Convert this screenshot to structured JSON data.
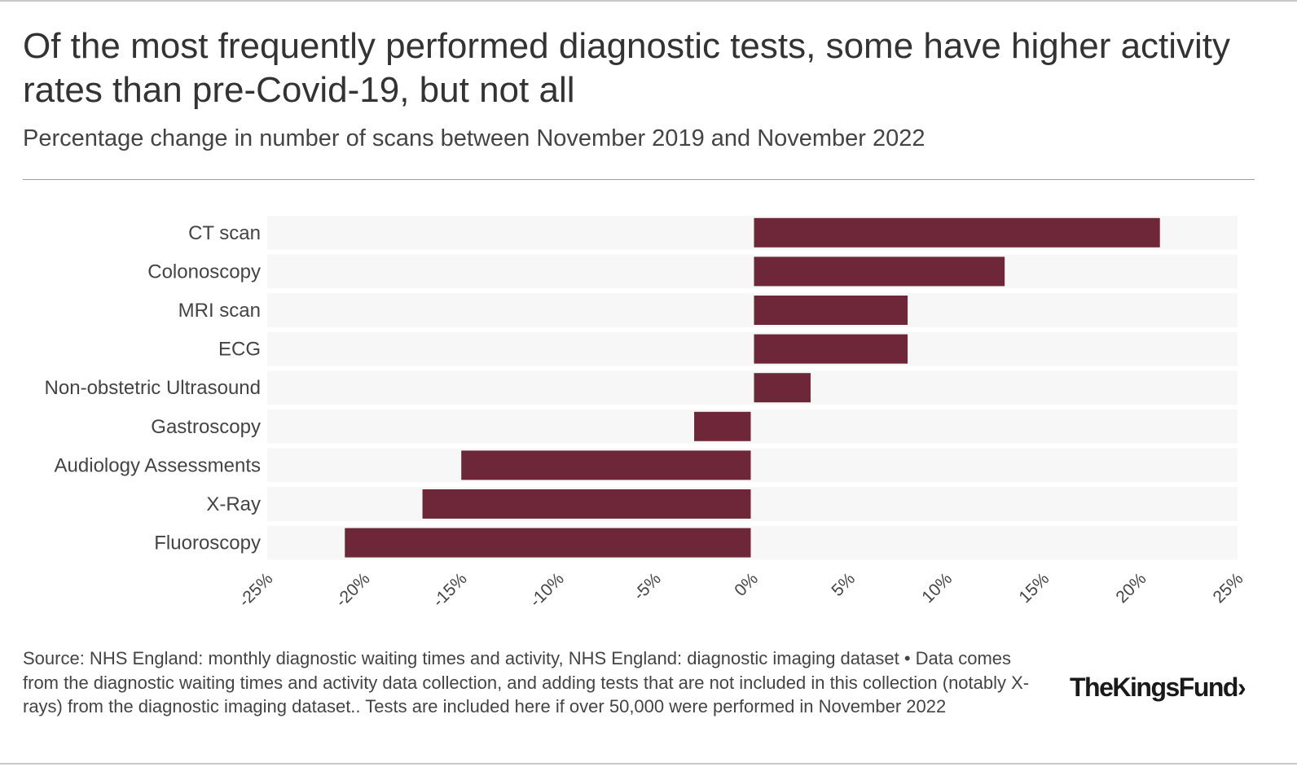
{
  "header": {
    "title": "Of the most frequently performed diagnostic tests, some have higher activity rates than pre-Covid-19, but not all",
    "subtitle": "Percentage change in number of scans between November 2019 and November 2022"
  },
  "chart_data": {
    "type": "bar",
    "orientation": "horizontal",
    "categories": [
      "CT scan",
      "Colonoscopy",
      "MRI scan",
      "ECG",
      "Non-obstetric Ultrasound",
      "Gastroscopy",
      "Audiology Assessments",
      "X-Ray",
      "Fluoroscopy"
    ],
    "values": [
      21,
      13,
      8,
      8,
      3,
      -3,
      -15,
      -17,
      -21
    ],
    "unit": "%",
    "xlim": [
      -25,
      25
    ],
    "xticks": [
      -25,
      -20,
      -15,
      -10,
      -5,
      0,
      5,
      10,
      15,
      20,
      25
    ],
    "xtick_labels": [
      "-25%",
      "-20%",
      "-15%",
      "-10%",
      "-5%",
      "0%",
      "5%",
      "10%",
      "15%",
      "20%",
      "25%"
    ],
    "bar_color": "#6e2639",
    "row_band_color": "#f7f7f7",
    "grid": false,
    "legend": "none"
  },
  "footer": {
    "source": "Source: NHS England: monthly diagnostic waiting times and activity, NHS England: diagnostic imaging dataset • Data comes from the diagnostic waiting times and activity data collection, and adding tests that are not included in this collection (notably X-rays) from the diagnostic imaging dataset.. Tests are included here if over 50,000 were performed in November 2022",
    "logo": "TheKingsFund›"
  }
}
